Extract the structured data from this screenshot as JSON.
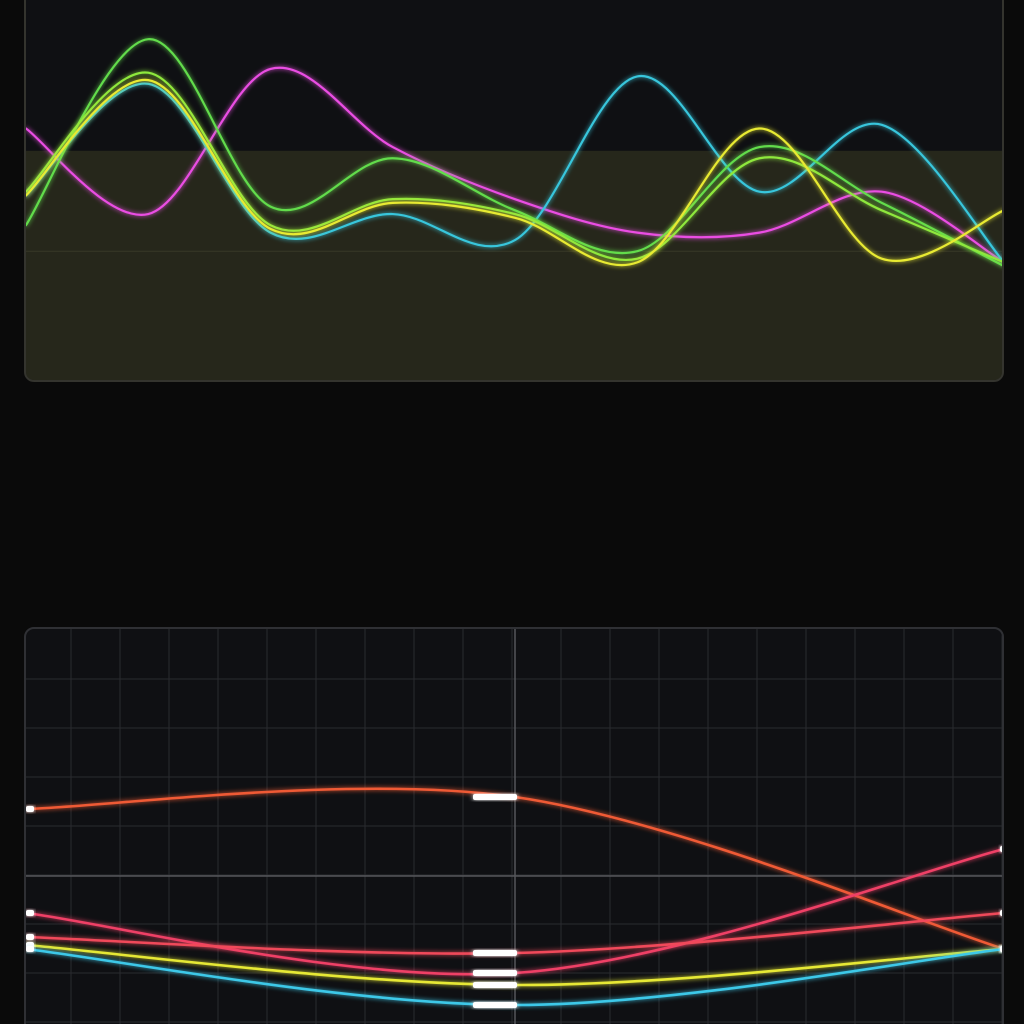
{
  "chart_data": [
    {
      "type": "line",
      "x": [
        0,
        1,
        2,
        3,
        4,
        5,
        6,
        7,
        8
      ],
      "ylim": [
        0,
        100
      ],
      "highlight_band": {
        "y_range": [
          0,
          60
        ],
        "color": "#3a3a22"
      },
      "grid": false,
      "series": [
        {
          "color": "#ea4ee3",
          "values": [
            66,
            43,
            82,
            61,
            47,
            38,
            38,
            49,
            30
          ]
        },
        {
          "color": "#38c6dc",
          "values": [
            48,
            78,
            38,
            43,
            36,
            80,
            49,
            67,
            30
          ]
        },
        {
          "color": "#62dc4c",
          "values": [
            40,
            90,
            45,
            58,
            44,
            33,
            61,
            46,
            29
          ]
        },
        {
          "color": "#8ee83c",
          "values": [
            49,
            81,
            40,
            47,
            43,
            31,
            58,
            44,
            30
          ]
        },
        {
          "color": "#e8ea32",
          "values": [
            48,
            79,
            39,
            46,
            42,
            30,
            66,
            31,
            44
          ]
        }
      ]
    },
    {
      "type": "line",
      "x": [
        0,
        1,
        2
      ],
      "ylim": [
        0,
        100
      ],
      "grid": true,
      "marker_style": "bright-bar",
      "series": [
        {
          "color": "#ef5a36",
          "values": [
            55,
            58,
            20
          ]
        },
        {
          "color": "#ef3f66",
          "values": [
            29,
            14,
            45
          ]
        },
        {
          "color": "#f04a5a",
          "values": [
            23,
            19,
            29
          ]
        },
        {
          "color": "#e6e836",
          "values": [
            21,
            11,
            20
          ]
        },
        {
          "color": "#3ec8e8",
          "values": [
            20,
            6,
            20
          ]
        }
      ]
    }
  ]
}
